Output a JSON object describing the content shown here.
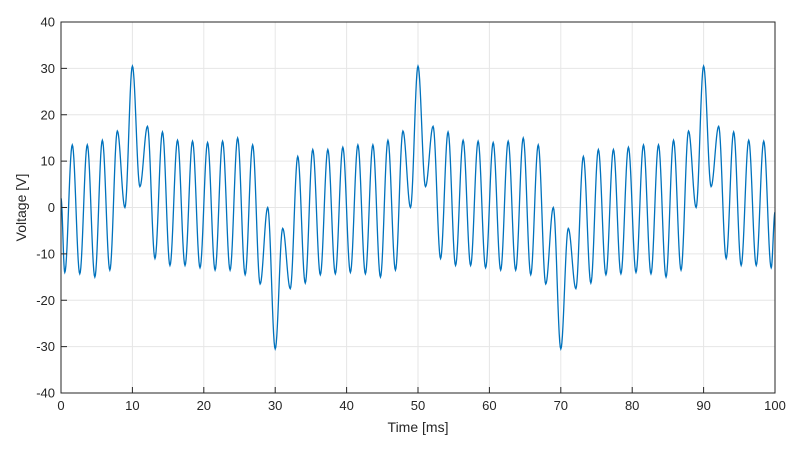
{
  "chart_data": {
    "type": "line",
    "title": "",
    "xlabel": "Time [ms]",
    "ylabel": "Voltage [V]",
    "xlim": [
      0,
      100
    ],
    "ylim": [
      -40,
      40
    ],
    "xticks": [
      0,
      10,
      20,
      30,
      40,
      50,
      60,
      70,
      80,
      90,
      100
    ],
    "yticks": [
      -40,
      -30,
      -20,
      -10,
      0,
      10,
      20,
      30,
      40
    ],
    "grid": true,
    "line_color": "#0072BD",
    "series": [
      {
        "x": [
          0,
          0.53,
          1.58,
          2.63,
          3.68,
          4.74,
          5.79,
          6.84,
          7.89,
          8.95,
          10.0,
          11.05,
          12.11,
          13.16,
          14.21,
          15.26,
          16.32,
          17.37,
          18.42,
          19.47,
          20.53,
          21.58,
          22.63,
          23.68,
          24.74,
          25.79,
          26.84,
          27.89,
          28.95,
          30.0,
          31.05,
          32.11,
          33.16,
          34.21,
          35.26,
          36.32,
          37.37,
          38.42,
          39.47,
          40.53,
          41.58,
          42.63,
          43.68,
          44.74,
          45.79,
          46.84,
          47.89,
          48.95,
          50.0,
          51.05,
          52.11,
          53.16,
          54.21,
          55.26,
          56.32,
          57.37,
          58.42,
          59.47,
          60.53,
          61.58,
          62.63,
          63.68,
          64.74,
          65.79,
          66.84,
          67.89,
          68.95,
          70.0,
          71.05,
          72.11,
          73.16,
          74.21,
          75.26,
          76.32,
          77.37,
          78.42,
          79.47,
          80.53,
          81.58,
          82.63,
          83.68,
          84.74,
          85.79,
          86.84,
          87.89,
          88.95,
          90.0,
          91.05,
          92.11,
          93.16,
          94.21,
          95.26,
          96.32,
          97.37,
          98.42,
          99.47,
          100
        ],
        "y": [
          2,
          -14,
          13.5,
          -14.3,
          13.5,
          -15,
          14.5,
          -13.5,
          16.5,
          0,
          30.5,
          4.5,
          17.5,
          -11,
          16.3,
          -12.5,
          14.5,
          -12.5,
          14.3,
          -13,
          14,
          -13.5,
          14.3,
          -13.5,
          15,
          -14.5,
          13.5,
          -16.5,
          0,
          -30.5,
          -4.5,
          -17.5,
          11,
          -16.3,
          12.5,
          -14.5,
          12.5,
          -14.3,
          13,
          -14,
          13.5,
          -14.3,
          13.5,
          -15,
          14.5,
          -13.5,
          16.5,
          0,
          30.5,
          4.5,
          17.5,
          -11,
          16.3,
          -12.5,
          14.5,
          -12.5,
          14.3,
          -13,
          14,
          -13.5,
          14.3,
          -13.5,
          15,
          -14.5,
          13.5,
          -16.5,
          0,
          -30.5,
          -4.5,
          -17.5,
          11,
          -16.3,
          12.5,
          -14.5,
          12.5,
          -14.3,
          13,
          -14,
          13.5,
          -14.3,
          13.5,
          -15,
          14.5,
          -13.5,
          16.5,
          0,
          30.5,
          4.5,
          17.5,
          -11,
          16.3,
          -12.5,
          14.5,
          -12.5,
          14.3,
          -13,
          -1
        ]
      }
    ]
  }
}
